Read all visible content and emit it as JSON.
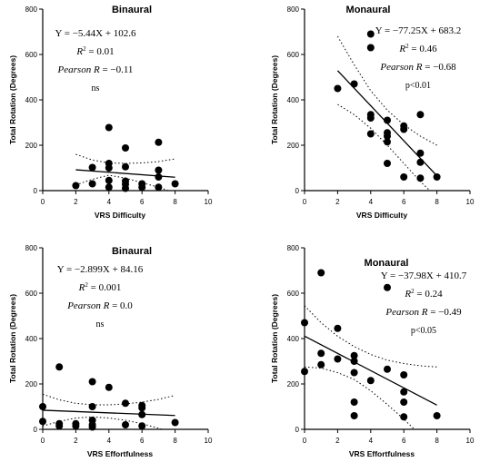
{
  "chart_data": [
    {
      "type": "scatter",
      "title": "Binaural",
      "xlabel": "VRS Difficulty",
      "ylabel": "Total Rotation (Degrees)",
      "xlim": [
        0,
        10
      ],
      "ylim": [
        0,
        800
      ],
      "xticks": [
        "0",
        "2",
        "4",
        "6",
        "8",
        "10"
      ],
      "yticks": [
        "0",
        "200",
        "400",
        "600",
        "800"
      ],
      "grid": false,
      "points": [
        {
          "x": 2,
          "y": 22
        },
        {
          "x": 3,
          "y": 102
        },
        {
          "x": 3,
          "y": 30
        },
        {
          "x": 4,
          "y": 278
        },
        {
          "x": 4,
          "y": 120
        },
        {
          "x": 4,
          "y": 100
        },
        {
          "x": 4,
          "y": 45
        },
        {
          "x": 4,
          "y": 15
        },
        {
          "x": 5,
          "y": 188
        },
        {
          "x": 5,
          "y": 105
        },
        {
          "x": 5,
          "y": 42
        },
        {
          "x": 5,
          "y": 28
        },
        {
          "x": 5,
          "y": 10
        },
        {
          "x": 6,
          "y": 30
        },
        {
          "x": 6,
          "y": 15
        },
        {
          "x": 7,
          "y": 213
        },
        {
          "x": 7,
          "y": 90
        },
        {
          "x": 7,
          "y": 60
        },
        {
          "x": 7,
          "y": 15
        },
        {
          "x": 8,
          "y": 30
        }
      ],
      "fit": {
        "slope": -5.44,
        "intercept": 102.6,
        "x_range": [
          2,
          8
        ]
      },
      "ci_upper": [
        [
          2,
          160
        ],
        [
          3,
          135
        ],
        [
          4,
          122
        ],
        [
          5,
          120
        ],
        [
          6,
          122
        ],
        [
          7,
          128
        ],
        [
          8,
          140
        ]
      ],
      "ci_lower": [
        [
          2,
          25
        ],
        [
          3,
          50
        ],
        [
          4,
          68
        ],
        [
          5,
          55
        ],
        [
          6,
          35
        ],
        [
          7,
          15
        ],
        [
          8,
          -10
        ]
      ],
      "annotations": {
        "equation": "Y = −5.44X + 102.6",
        "r2_value": "= 0.01",
        "pearson_value": "= −0.11",
        "significance": "ns"
      }
    },
    {
      "type": "scatter",
      "title": "Monaural",
      "xlabel": "VRS Difficulty",
      "ylabel": "Total Rotation (Degrees)",
      "xlim": [
        0,
        10
      ],
      "ylim": [
        0,
        800
      ],
      "xticks": [
        "0",
        "2",
        "4",
        "6",
        "8",
        "10"
      ],
      "yticks": [
        "0",
        "200",
        "400",
        "600",
        "800"
      ],
      "grid": false,
      "points": [
        {
          "x": 2,
          "y": 450
        },
        {
          "x": 3,
          "y": 470
        },
        {
          "x": 4,
          "y": 690
        },
        {
          "x": 4,
          "y": 630
        },
        {
          "x": 4,
          "y": 335
        },
        {
          "x": 4,
          "y": 320
        },
        {
          "x": 4,
          "y": 250
        },
        {
          "x": 5,
          "y": 310
        },
        {
          "x": 5,
          "y": 255
        },
        {
          "x": 5,
          "y": 240
        },
        {
          "x": 5,
          "y": 215
        },
        {
          "x": 5,
          "y": 120
        },
        {
          "x": 6,
          "y": 285
        },
        {
          "x": 6,
          "y": 270
        },
        {
          "x": 6,
          "y": 60
        },
        {
          "x": 7,
          "y": 335
        },
        {
          "x": 7,
          "y": 165
        },
        {
          "x": 7,
          "y": 125
        },
        {
          "x": 7,
          "y": 55
        },
        {
          "x": 8,
          "y": 60
        }
      ],
      "fit": {
        "slope": -77.25,
        "intercept": 683.2,
        "x_range": [
          2,
          8
        ]
      },
      "ci_upper": [
        [
          2,
          680
        ],
        [
          3,
          555
        ],
        [
          4,
          440
        ],
        [
          5,
          355
        ],
        [
          6,
          290
        ],
        [
          7,
          240
        ],
        [
          8,
          200
        ]
      ],
      "ci_lower": [
        [
          2,
          380
        ],
        [
          3,
          335
        ],
        [
          4,
          275
        ],
        [
          5,
          200
        ],
        [
          6,
          120
        ],
        [
          7,
          40
        ],
        [
          8,
          -30
        ]
      ],
      "annotations": {
        "equation": "Y = −77.25X + 683.2",
        "r2_value": "= 0.46",
        "pearson_value": "= −0.68",
        "significance": "p<0.01"
      }
    },
    {
      "type": "scatter",
      "title": "Binaural",
      "xlabel": "VRS Effortfulness",
      "ylabel": "Total Rotation (Degrees)",
      "xlim": [
        0,
        10
      ],
      "ylim": [
        0,
        800
      ],
      "xticks": [
        "0",
        "2",
        "4",
        "6",
        "8",
        "10"
      ],
      "yticks": [
        "0",
        "200",
        "400",
        "600",
        "800"
      ],
      "grid": false,
      "points": [
        {
          "x": 0,
          "y": 100
        },
        {
          "x": 0,
          "y": 35
        },
        {
          "x": 1,
          "y": 275
        },
        {
          "x": 1,
          "y": 25
        },
        {
          "x": 1,
          "y": 15
        },
        {
          "x": 2,
          "y": 25
        },
        {
          "x": 2,
          "y": 15
        },
        {
          "x": 3,
          "y": 210
        },
        {
          "x": 3,
          "y": 100
        },
        {
          "x": 3,
          "y": 40
        },
        {
          "x": 3,
          "y": 20
        },
        {
          "x": 3,
          "y": 10
        },
        {
          "x": 4,
          "y": 185
        },
        {
          "x": 5,
          "y": 115
        },
        {
          "x": 5,
          "y": 20
        },
        {
          "x": 6,
          "y": 105
        },
        {
          "x": 6,
          "y": 95
        },
        {
          "x": 6,
          "y": 65
        },
        {
          "x": 6,
          "y": 15
        },
        {
          "x": 8,
          "y": 30
        }
      ],
      "fit": {
        "slope": -2.899,
        "intercept": 84.16,
        "x_range": [
          0,
          8
        ]
      },
      "ci_upper": [
        [
          0,
          155
        ],
        [
          1,
          130
        ],
        [
          2,
          115
        ],
        [
          3,
          108
        ],
        [
          4,
          108
        ],
        [
          5,
          112
        ],
        [
          6,
          120
        ],
        [
          7,
          132
        ],
        [
          8,
          150
        ]
      ],
      "ci_lower": [
        [
          0,
          15
        ],
        [
          1,
          35
        ],
        [
          2,
          50
        ],
        [
          3,
          55
        ],
        [
          4,
          50
        ],
        [
          5,
          40
        ],
        [
          6,
          25
        ],
        [
          7,
          5
        ],
        [
          8,
          -20
        ]
      ],
      "annotations": {
        "equation": "Y = −2.899X + 84.16",
        "r2_value": "= 0.001",
        "pearson_value": "= 0.0",
        "significance": "ns"
      }
    },
    {
      "type": "scatter",
      "title": "Monaural",
      "xlabel": "VRS Effortfulness",
      "ylabel": "Total Rotation (Degrees)",
      "xlim": [
        0,
        10
      ],
      "ylim": [
        0,
        800
      ],
      "xticks": [
        "0",
        "2",
        "4",
        "6",
        "8",
        "10"
      ],
      "yticks": [
        "0",
        "200",
        "400",
        "600",
        "800"
      ],
      "grid": false,
      "points": [
        {
          "x": 0,
          "y": 470
        },
        {
          "x": 0,
          "y": 255
        },
        {
          "x": 1,
          "y": 690
        },
        {
          "x": 1,
          "y": 335
        },
        {
          "x": 1,
          "y": 285
        },
        {
          "x": 2,
          "y": 445
        },
        {
          "x": 2,
          "y": 310
        },
        {
          "x": 3,
          "y": 325
        },
        {
          "x": 3,
          "y": 300
        },
        {
          "x": 3,
          "y": 250
        },
        {
          "x": 3,
          "y": 120
        },
        {
          "x": 3,
          "y": 60
        },
        {
          "x": 4,
          "y": 215
        },
        {
          "x": 5,
          "y": 625
        },
        {
          "x": 5,
          "y": 265
        },
        {
          "x": 6,
          "y": 240
        },
        {
          "x": 6,
          "y": 165
        },
        {
          "x": 6,
          "y": 120
        },
        {
          "x": 6,
          "y": 55
        },
        {
          "x": 8,
          "y": 60
        }
      ],
      "fit": {
        "slope": -37.98,
        "intercept": 410.7,
        "x_range": [
          0,
          8
        ]
      },
      "ci_upper": [
        [
          0,
          545
        ],
        [
          1,
          470
        ],
        [
          2,
          410
        ],
        [
          3,
          365
        ],
        [
          4,
          330
        ],
        [
          5,
          305
        ],
        [
          6,
          290
        ],
        [
          7,
          280
        ],
        [
          8,
          275
        ]
      ],
      "ci_lower": [
        [
          0,
          275
        ],
        [
          1,
          270
        ],
        [
          2,
          250
        ],
        [
          3,
          220
        ],
        [
          4,
          170
        ],
        [
          5,
          110
        ],
        [
          6,
          45
        ],
        [
          7,
          -25
        ],
        [
          8,
          -100
        ]
      ],
      "annotations": {
        "equation": "Y = −37.98X + 410.7",
        "r2_value": "= 0.24",
        "pearson_value": "= −0.49",
        "significance": "p<0.05"
      }
    }
  ],
  "labels": {
    "r2_symbol": "R",
    "r2_sup": "2",
    "pearson_label": "Pearson R"
  }
}
